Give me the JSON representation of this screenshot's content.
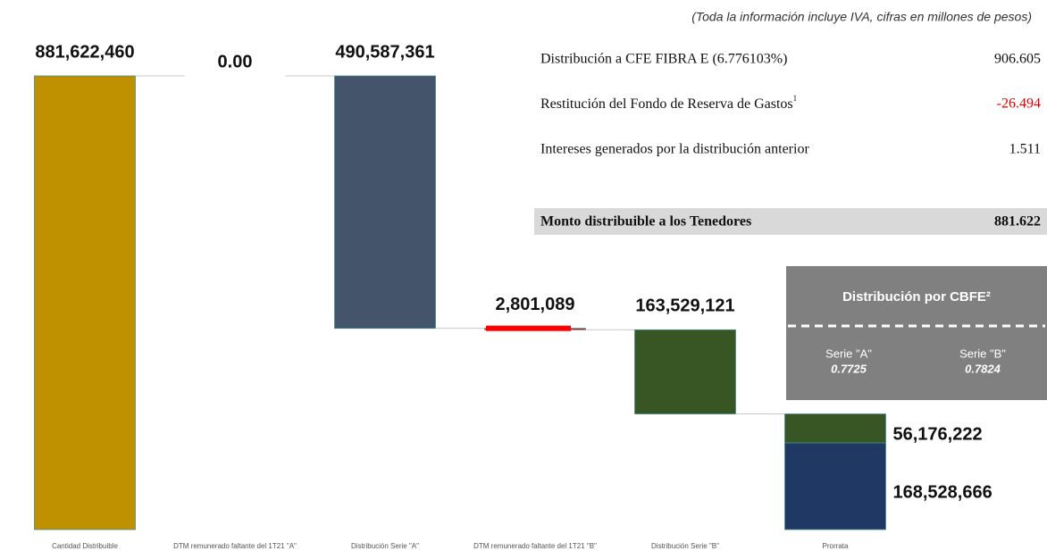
{
  "chart_data": {
    "type": "waterfall",
    "categories": [
      "Cantidad Distribuible",
      "DTM remunerado faltante del 1T21 \"A\"",
      "Distribución Serie \"A\"",
      "DTM remunerado faltante del 1T21 \"B\"",
      "Distribución Serie \"B\"",
      "Prorrata"
    ],
    "values": [
      881622460,
      0,
      490587361,
      2801089,
      163529121,
      [
        56176222,
        168528666
      ]
    ],
    "value_labels": [
      "881,622,460",
      "0.00",
      "490,587,361",
      "2,801,089",
      "163,529,121",
      [
        "56,176,222",
        "168,528,666"
      ]
    ],
    "colors": [
      "#bf9000",
      "#7f7f7f",
      "#44546a",
      "#e00000",
      "#375623",
      [
        "#375623",
        "#203864"
      ]
    ],
    "ylim": [
      0,
      881622460
    ]
  },
  "summary": {
    "note": "(Toda la información incluye IVA, cifras en millones de pesos)",
    "rows": [
      {
        "label": "Distribución a CFE FIBRA E (6.776103%)",
        "value": "906.605"
      },
      {
        "label": "Restitución del Fondo de Reserva de Gastos",
        "footnote": "1",
        "value": "-26.494"
      },
      {
        "label": "Intereses generados por la distribución anterior",
        "value": "1.511"
      }
    ],
    "total": {
      "label": "Monto distribuible a los Tenedores",
      "value": "881.622"
    }
  },
  "cbfe_box": {
    "title": "Distribución por CBFE²",
    "columns": [
      {
        "label": "Serie \"A\"",
        "value": "0.7725"
      },
      {
        "label": "Serie \"B\"",
        "value": "0.7824"
      }
    ]
  }
}
